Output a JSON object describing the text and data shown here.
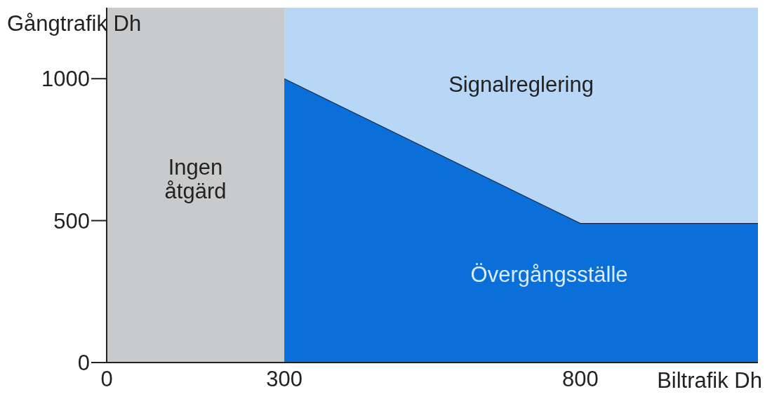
{
  "chart_data": {
    "type": "area",
    "xlabel": "Biltrafik Dh",
    "ylabel": "Gångtrafik Dh",
    "series": [
      {
        "name": "Övergångsställe",
        "color": "#0a6fd8",
        "x": [
          300,
          800,
          1100
        ],
        "values": [
          1000,
          490,
          490
        ]
      }
    ],
    "bands": [
      {
        "axis": "x",
        "from": 0,
        "to": 300,
        "label": "Ingen åtgärd",
        "color": "#c9cacb"
      },
      {
        "axis": "x",
        "from": 300,
        "to": 1100,
        "label": "Signalreglering",
        "color": "#b8d7f7"
      }
    ],
    "xlim": [
      0,
      1100
    ],
    "xticks": [
      0,
      300,
      800
    ],
    "ylim": [
      0,
      1250
    ],
    "yticks": [
      0,
      500,
      1000
    ]
  }
}
